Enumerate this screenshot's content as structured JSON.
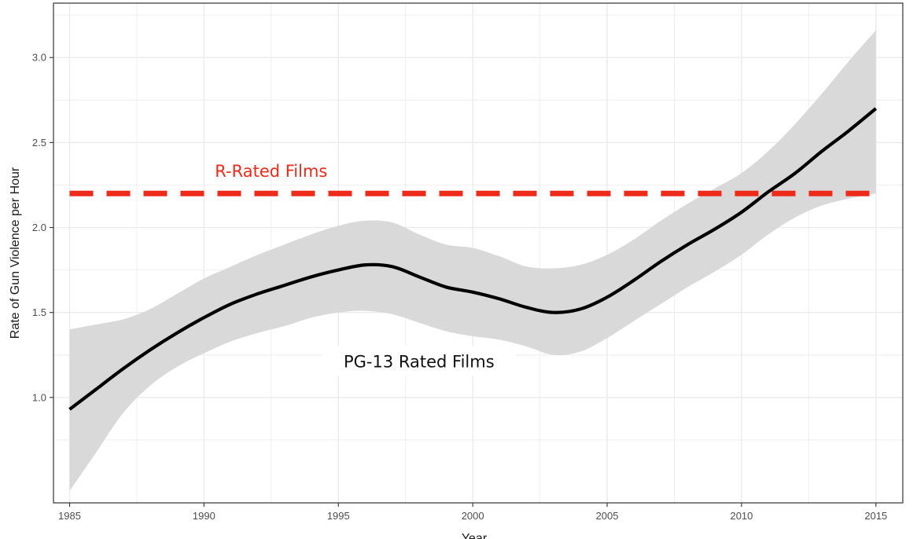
{
  "chart_data": {
    "type": "line",
    "title": "",
    "xlabel": "Year",
    "ylabel": "Rate of Gun Violence per Hour",
    "xlim": [
      1984.4,
      2016.0
    ],
    "ylim": [
      0.38,
      3.32
    ],
    "x_ticks": [
      1985,
      1990,
      1995,
      2000,
      2005,
      2010,
      2015
    ],
    "y_ticks": [
      1.0,
      1.5,
      2.0,
      2.5,
      3.0
    ],
    "x_tick_labels": [
      "1985",
      "1990",
      "1995",
      "2000",
      "2005",
      "2010",
      "2015"
    ],
    "y_tick_labels": [
      "1.0",
      "1.5",
      "2.0",
      "2.5",
      "3.0"
    ],
    "grid": true,
    "colors": {
      "smooth_line": "#000000",
      "confidence_band": "#d9d9d9",
      "reference_line": "#ee2a1b",
      "grid": "#ebebeb"
    },
    "series": [
      {
        "name": "PG-13 Rated Films",
        "x": [
          1985,
          1986,
          1987,
          1988,
          1989,
          1990,
          1991,
          1992,
          1993,
          1994,
          1995,
          1996,
          1997,
          1998,
          1999,
          2000,
          2001,
          2002,
          2003,
          2004,
          2005,
          2006,
          2007,
          2008,
          2009,
          2010,
          2011,
          2012,
          2013,
          2014,
          2015
        ],
        "y": [
          0.93,
          1.05,
          1.17,
          1.28,
          1.38,
          1.47,
          1.55,
          1.61,
          1.66,
          1.71,
          1.75,
          1.78,
          1.77,
          1.71,
          1.65,
          1.62,
          1.58,
          1.53,
          1.5,
          1.52,
          1.59,
          1.69,
          1.8,
          1.9,
          1.99,
          2.09,
          2.21,
          2.32,
          2.45,
          2.57,
          2.7
        ],
        "lower": [
          0.45,
          0.68,
          0.91,
          1.07,
          1.18,
          1.26,
          1.33,
          1.38,
          1.42,
          1.47,
          1.5,
          1.51,
          1.49,
          1.44,
          1.39,
          1.36,
          1.34,
          1.3,
          1.25,
          1.27,
          1.35,
          1.45,
          1.55,
          1.65,
          1.74,
          1.84,
          1.96,
          2.06,
          2.13,
          2.17,
          2.2
        ],
        "upper": [
          1.4,
          1.43,
          1.46,
          1.52,
          1.61,
          1.7,
          1.77,
          1.84,
          1.9,
          1.96,
          2.01,
          2.04,
          2.03,
          1.96,
          1.9,
          1.88,
          1.83,
          1.77,
          1.76,
          1.78,
          1.84,
          1.93,
          2.04,
          2.14,
          2.23,
          2.32,
          2.45,
          2.61,
          2.79,
          2.98,
          3.16
        ]
      }
    ],
    "reference_lines": [
      {
        "name": "R-Rated Films",
        "y": 2.2,
        "style": "dashed"
      }
    ],
    "annotations": [
      {
        "text": "R-Rated Films",
        "x": 1992.5,
        "y": 2.33
      },
      {
        "text": "PG-13 Rated Films",
        "x": 1998.0,
        "y": 1.21
      }
    ]
  }
}
